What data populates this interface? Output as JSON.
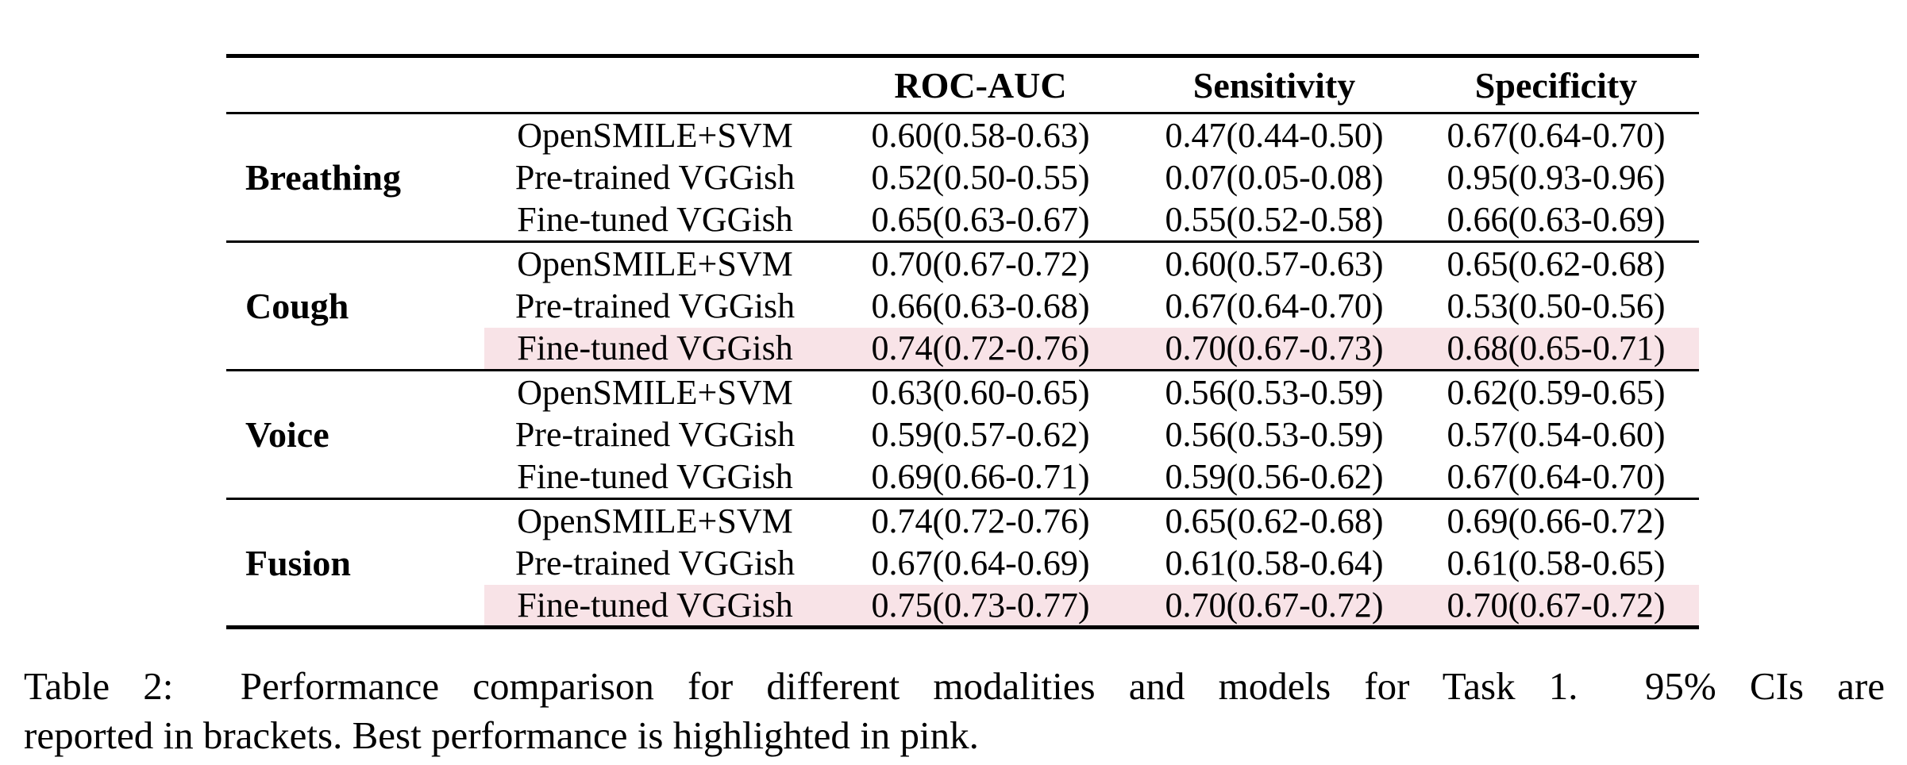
{
  "table": {
    "highlight_color": "#f8e3e7",
    "header": {
      "roc": "ROC-AUC",
      "sensitivity": "Sensitivity",
      "specificity": "Specificity"
    },
    "groups": [
      {
        "modality": "Breathing",
        "rows": [
          {
            "model": "OpenSMILE+SVM",
            "roc_auc": "0.60(0.58-0.63)",
            "sensitivity": "0.47(0.44-0.50)",
            "specificity": "0.67(0.64-0.70)",
            "highlighted": false
          },
          {
            "model": "Pre-trained VGGish",
            "roc_auc": "0.52(0.50-0.55)",
            "sensitivity": "0.07(0.05-0.08)",
            "specificity": "0.95(0.93-0.96)",
            "highlighted": false
          },
          {
            "model": "Fine-tuned VGGish",
            "roc_auc": "0.65(0.63-0.67)",
            "sensitivity": "0.55(0.52-0.58)",
            "specificity": "0.66(0.63-0.69)",
            "highlighted": false
          }
        ]
      },
      {
        "modality": "Cough",
        "rows": [
          {
            "model": "OpenSMILE+SVM",
            "roc_auc": "0.70(0.67-0.72)",
            "sensitivity": "0.60(0.57-0.63)",
            "specificity": "0.65(0.62-0.68)",
            "highlighted": false
          },
          {
            "model": "Pre-trained VGGish",
            "roc_auc": "0.66(0.63-0.68)",
            "sensitivity": "0.67(0.64-0.70)",
            "specificity": "0.53(0.50-0.56)",
            "highlighted": false
          },
          {
            "model": "Fine-tuned VGGish",
            "roc_auc": "0.74(0.72-0.76)",
            "sensitivity": "0.70(0.67-0.73)",
            "specificity": "0.68(0.65-0.71)",
            "highlighted": true
          }
        ]
      },
      {
        "modality": "Voice",
        "rows": [
          {
            "model": "OpenSMILE+SVM",
            "roc_auc": "0.63(0.60-0.65)",
            "sensitivity": "0.56(0.53-0.59)",
            "specificity": "0.62(0.59-0.65)",
            "highlighted": false
          },
          {
            "model": "Pre-trained VGGish",
            "roc_auc": "0.59(0.57-0.62)",
            "sensitivity": "0.56(0.53-0.59)",
            "specificity": "0.57(0.54-0.60)",
            "highlighted": false
          },
          {
            "model": "Fine-tuned VGGish",
            "roc_auc": "0.69(0.66-0.71)",
            "sensitivity": "0.59(0.56-0.62)",
            "specificity": "0.67(0.64-0.70)",
            "highlighted": false
          }
        ]
      },
      {
        "modality": "Fusion",
        "rows": [
          {
            "model": "OpenSMILE+SVM",
            "roc_auc": "0.74(0.72-0.76)",
            "sensitivity": "0.65(0.62-0.68)",
            "specificity": "0.69(0.66-0.72)",
            "highlighted": false
          },
          {
            "model": "Pre-trained VGGish",
            "roc_auc": "0.67(0.64-0.69)",
            "sensitivity": "0.61(0.58-0.64)",
            "specificity": "0.61(0.58-0.65)",
            "highlighted": false
          },
          {
            "model": "Fine-tuned VGGish",
            "roc_auc": "0.75(0.73-0.77)",
            "sensitivity": "0.70(0.67-0.72)",
            "specificity": "0.70(0.67-0.72)",
            "highlighted": true
          }
        ]
      }
    ]
  },
  "caption": {
    "line1": "Table 2:  Performance comparison for different modalities and models for Task 1.  95% CIs are",
    "line2": "reported in brackets. Best performance is highlighted in pink."
  }
}
